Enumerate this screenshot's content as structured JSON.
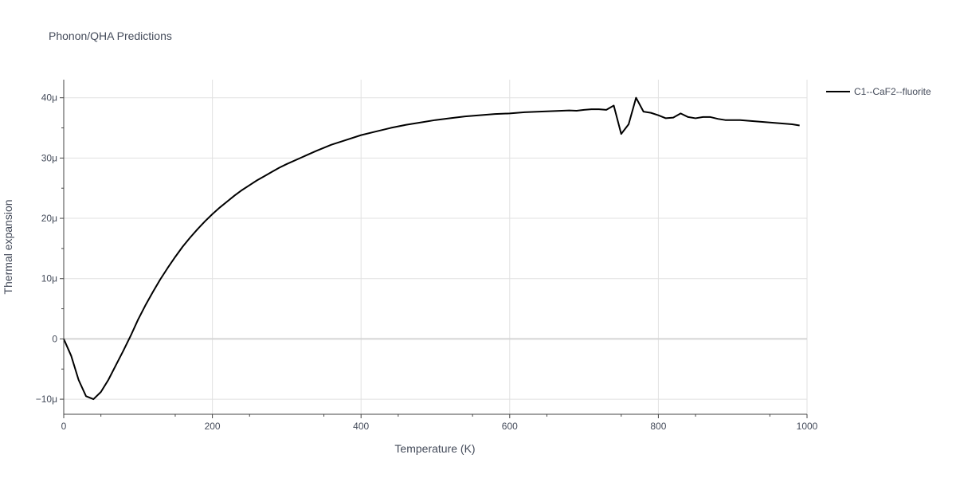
{
  "chart_data": {
    "type": "line",
    "title": "Phonon/QHA Predictions",
    "xlabel": "Temperature (K)",
    "ylabel": "Thermal expansion",
    "xlim": [
      0,
      1000
    ],
    "ylim": [
      -12.5,
      43
    ],
    "x_ticks": [
      0,
      200,
      400,
      600,
      800,
      1000
    ],
    "x_tick_labels": [
      "0",
      "200",
      "400",
      "600",
      "800",
      "1000"
    ],
    "y_ticks": [
      -10,
      0,
      10,
      20,
      30,
      40
    ],
    "y_tick_labels": [
      "−10μ",
      "0",
      "10μ",
      "20μ",
      "30μ",
      "40μ"
    ],
    "grid": true,
    "legend_position": "top-right",
    "series": [
      {
        "name": "C1--CaF2--fluorite",
        "color": "#000000",
        "x": [
          0,
          10,
          20,
          30,
          40,
          50,
          60,
          70,
          80,
          90,
          100,
          110,
          120,
          130,
          140,
          150,
          160,
          170,
          180,
          190,
          200,
          210,
          220,
          230,
          240,
          250,
          260,
          270,
          280,
          290,
          300,
          320,
          340,
          360,
          380,
          400,
          420,
          440,
          460,
          480,
          500,
          520,
          540,
          560,
          580,
          600,
          620,
          640,
          660,
          680,
          690,
          700,
          710,
          720,
          730,
          740,
          750,
          760,
          770,
          780,
          790,
          800,
          810,
          820,
          830,
          840,
          850,
          860,
          870,
          880,
          890,
          900,
          910,
          920,
          940,
          960,
          980,
          990
        ],
        "y": [
          0,
          -2.8,
          -6.8,
          -9.5,
          -10.0,
          -8.8,
          -6.8,
          -4.4,
          -2.0,
          0.5,
          3.2,
          5.6,
          7.8,
          9.9,
          11.8,
          13.6,
          15.3,
          16.8,
          18.2,
          19.5,
          20.7,
          21.8,
          22.8,
          23.8,
          24.7,
          25.5,
          26.3,
          27.0,
          27.7,
          28.4,
          29.0,
          30.1,
          31.2,
          32.2,
          33.0,
          33.8,
          34.4,
          35.0,
          35.5,
          35.9,
          36.3,
          36.6,
          36.9,
          37.1,
          37.3,
          37.4,
          37.6,
          37.7,
          37.8,
          37.9,
          37.85,
          38.0,
          38.1,
          38.1,
          38.0,
          38.7,
          34.0,
          35.6,
          40.0,
          37.7,
          37.5,
          37.1,
          36.6,
          36.7,
          37.4,
          36.8,
          36.6,
          36.8,
          36.8,
          36.5,
          36.3,
          36.3,
          36.3,
          36.2,
          36.0,
          35.8,
          35.6,
          35.4
        ]
      }
    ]
  }
}
